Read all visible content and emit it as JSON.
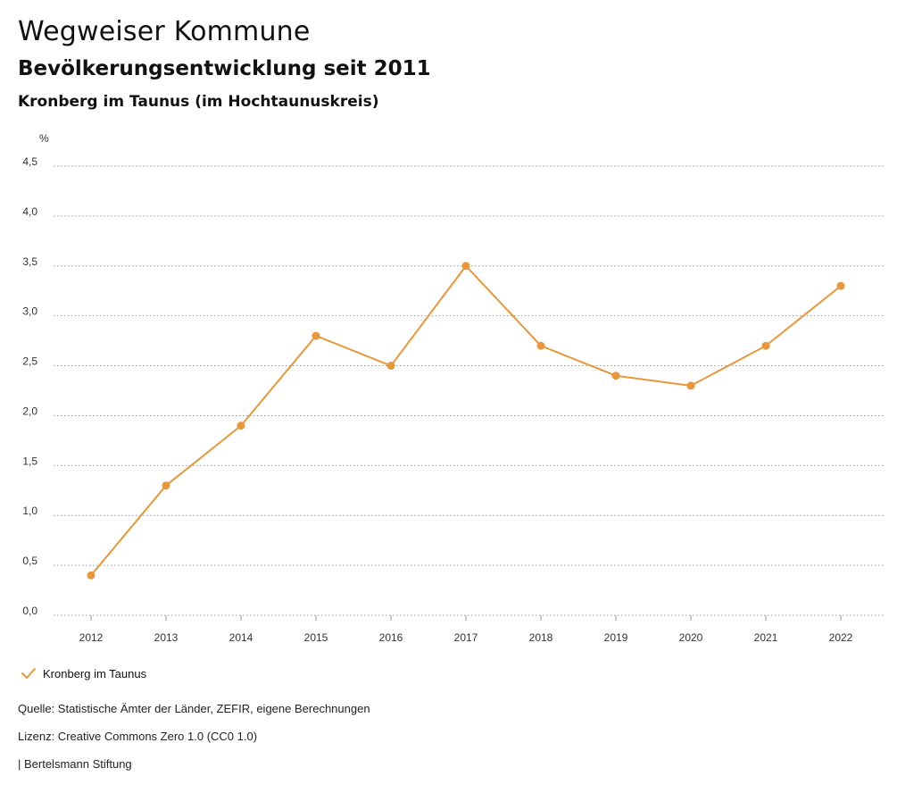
{
  "header": {
    "title": "Wegweiser Kommune",
    "subtitle": "Bevölkerungsentwicklung seit 2011",
    "region": "Kronberg im Taunus (im Hochtaunuskreis)"
  },
  "chart_data": {
    "type": "line",
    "title": "Bevölkerungsentwicklung seit 2011",
    "ylabel": "%",
    "xlabel": "",
    "ylim": [
      0,
      4.5
    ],
    "yticks": [
      0,
      0.5,
      1,
      1.5,
      2,
      2.5,
      3,
      3.5,
      4,
      4.5
    ],
    "ytick_labels": [
      "0,0",
      "0,5",
      "1,0",
      "1,5",
      "2,0",
      "2,5",
      "3,0",
      "3,5",
      "4,0",
      "4,5"
    ],
    "categories": [
      "2012",
      "2013",
      "2014",
      "2015",
      "2016",
      "2017",
      "2018",
      "2019",
      "2020",
      "2021",
      "2022"
    ],
    "series": [
      {
        "name": "Kronberg im Taunus",
        "color": "#e8973a",
        "values": [
          0.4,
          1.3,
          1.9,
          2.8,
          2.5,
          3.5,
          2.7,
          2.4,
          2.3,
          2.7,
          3.3
        ]
      }
    ],
    "grid": true,
    "legend": "bottom-left"
  },
  "legend": {
    "label": "Kronberg im Taunus",
    "icon": "check-icon",
    "color": "#e8973a"
  },
  "footer": {
    "source": "Quelle: Statistische Ämter der Länder, ZEFIR, eigene Berechnungen",
    "license": "Lizenz: Creative Commons Zero 1.0 (CC0 1.0)",
    "publisher": "| Bertelsmann Stiftung"
  }
}
